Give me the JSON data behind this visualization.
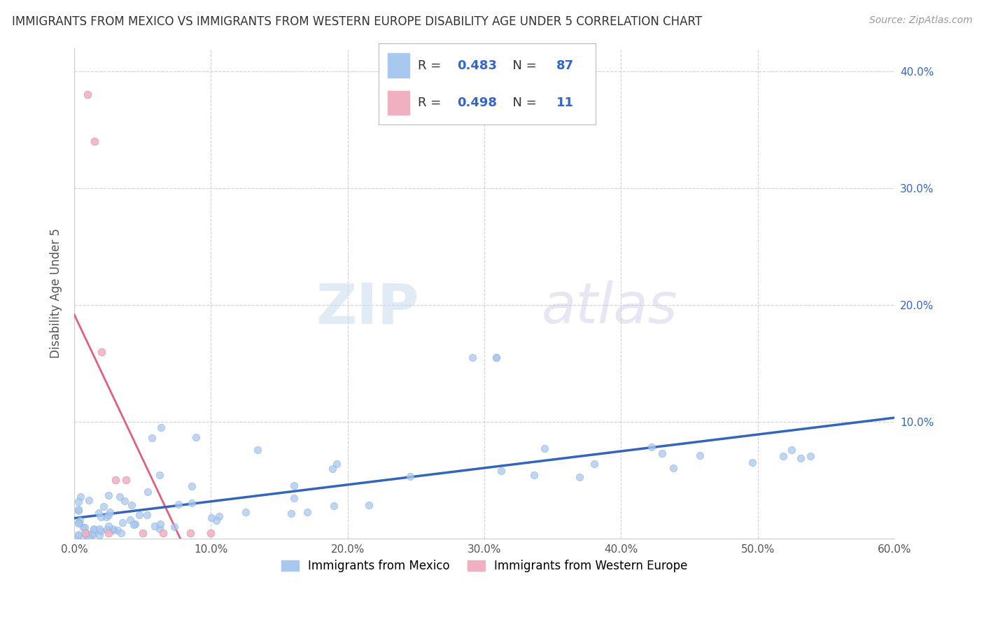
{
  "title": "IMMIGRANTS FROM MEXICO VS IMMIGRANTS FROM WESTERN EUROPE DISABILITY AGE UNDER 5 CORRELATION CHART",
  "source": "Source: ZipAtlas.com",
  "xlabel_label": "Immigrants from Mexico",
  "ylabel_label": "Disability Age Under 5",
  "watermark_zip": "ZIP",
  "watermark_atlas": "atlas",
  "xlim": [
    0.0,
    0.6
  ],
  "ylim": [
    0.0,
    0.42
  ],
  "xticks": [
    0.0,
    0.1,
    0.2,
    0.3,
    0.4,
    0.5,
    0.6
  ],
  "yticks": [
    0.0,
    0.1,
    0.2,
    0.3,
    0.4
  ],
  "xtick_labels": [
    "0.0%",
    "10.0%",
    "20.0%",
    "30.0%",
    "40.0%",
    "50.0%",
    "60.0%"
  ],
  "ytick_labels_right": [
    "",
    "10.0%",
    "20.0%",
    "30.0%",
    "40.0%"
  ],
  "blue_R": 0.483,
  "blue_N": 87,
  "pink_R": 0.498,
  "pink_N": 11,
  "blue_dot_color": "#A8C8F0",
  "pink_dot_color": "#F0B0C0",
  "blue_line_color": "#3366BB",
  "pink_line_color": "#E06080",
  "background_color": "#FFFFFF",
  "grid_color": "#CCCCCC",
  "title_color": "#333333",
  "axis_label_color": "#555555",
  "right_tick_color": "#3366CC",
  "legend_val_color": "#3366CC",
  "europe_x": [
    0.008,
    0.01,
    0.015,
    0.02,
    0.025,
    0.03,
    0.038,
    0.05,
    0.065,
    0.085,
    0.1
  ],
  "europe_y": [
    0.005,
    0.38,
    0.34,
    0.16,
    0.005,
    0.05,
    0.05,
    0.005,
    0.005,
    0.005,
    0.005
  ]
}
